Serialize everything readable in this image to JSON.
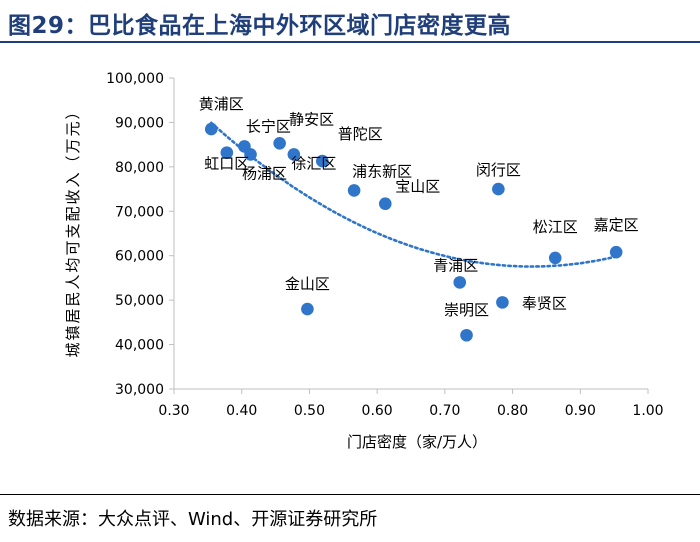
{
  "page": {
    "title": "图29：巴比食品在上海中外环区域门店密度更高",
    "source": "数据来源：大众点评、Wind、开源证券研究所"
  },
  "colors": {
    "title": "#1f3e7a",
    "point": "#2f75c9",
    "trend": "#2f75c9",
    "axis": "#bfbfbf"
  },
  "chart_data": {
    "type": "scatter",
    "title": "",
    "xlabel": "门店密度（家/万人）",
    "ylabel": "城镇居民人均可支配收入（万元）",
    "xlim": [
      0.3,
      1.0
    ],
    "ylim": [
      30000,
      100000
    ],
    "x_ticks": [
      "0.30",
      "0.40",
      "0.50",
      "0.60",
      "0.70",
      "0.80",
      "0.90",
      "1.00"
    ],
    "y_ticks": [
      "30,000",
      "40,000",
      "50,000",
      "60,000",
      "70,000",
      "80,000",
      "90,000",
      "100,000"
    ],
    "grid": false,
    "trendline": "polynomial (dotted)",
    "points": [
      {
        "label": "黄浦区",
        "x": 0.355,
        "y": 88500
      },
      {
        "label": "虹口区",
        "x": 0.378,
        "y": 83200
      },
      {
        "label": "长宁区",
        "x": 0.404,
        "y": 84600
      },
      {
        "label": "杨浦区",
        "x": 0.413,
        "y": 82800
      },
      {
        "label": "静安区",
        "x": 0.456,
        "y": 85300
      },
      {
        "label": "徐汇区",
        "x": 0.477,
        "y": 82800
      },
      {
        "label": "普陀区",
        "x": 0.519,
        "y": 81300
      },
      {
        "label": "浦东新区",
        "x": 0.566,
        "y": 74700
      },
      {
        "label": "宝山区",
        "x": 0.612,
        "y": 71700
      },
      {
        "label": "闵行区",
        "x": 0.779,
        "y": 75000
      },
      {
        "label": "金山区",
        "x": 0.497,
        "y": 48000
      },
      {
        "label": "青浦区",
        "x": 0.722,
        "y": 54000
      },
      {
        "label": "崇明区",
        "x": 0.732,
        "y": 42100
      },
      {
        "label": "奉贤区",
        "x": 0.785,
        "y": 49500
      },
      {
        "label": "松江区",
        "x": 0.863,
        "y": 59500
      },
      {
        "label": "嘉定区",
        "x": 0.953,
        "y": 60800
      }
    ]
  }
}
